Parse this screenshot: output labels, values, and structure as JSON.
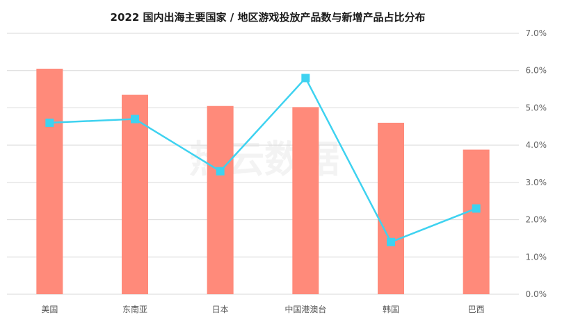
{
  "title": "2022 国内出海主要国家 / 地区游戏投放产品数与新增产品占比分布",
  "watermark": "热云数据",
  "colors": {
    "bar": "#FF8A7A",
    "line": "#3ED2F0",
    "grid": "#d9d9d9"
  },
  "chart_data": {
    "type": "bar",
    "categories": [
      "美国",
      "东南亚",
      "日本",
      "中国港澳台",
      "韩国",
      "巴西"
    ],
    "series": [
      {
        "kind": "bar",
        "axis": "left",
        "values": [
          6.05,
          5.35,
          5.05,
          5.02,
          4.6,
          3.88
        ]
      },
      {
        "kind": "line",
        "axis": "right",
        "values": [
          4.6,
          4.7,
          3.3,
          5.8,
          1.4,
          2.3
        ]
      }
    ],
    "y_right": {
      "min": 0,
      "max": 7,
      "step": 1,
      "format": "percent",
      "tick_labels": [
        "0.0%",
        "1.0%",
        "2.0%",
        "3.0%",
        "4.0%",
        "5.0%",
        "6.0%",
        "7.0%"
      ]
    },
    "y_left_hidden": {
      "min": 0,
      "max": 7
    },
    "grid": true,
    "legend": "none"
  }
}
